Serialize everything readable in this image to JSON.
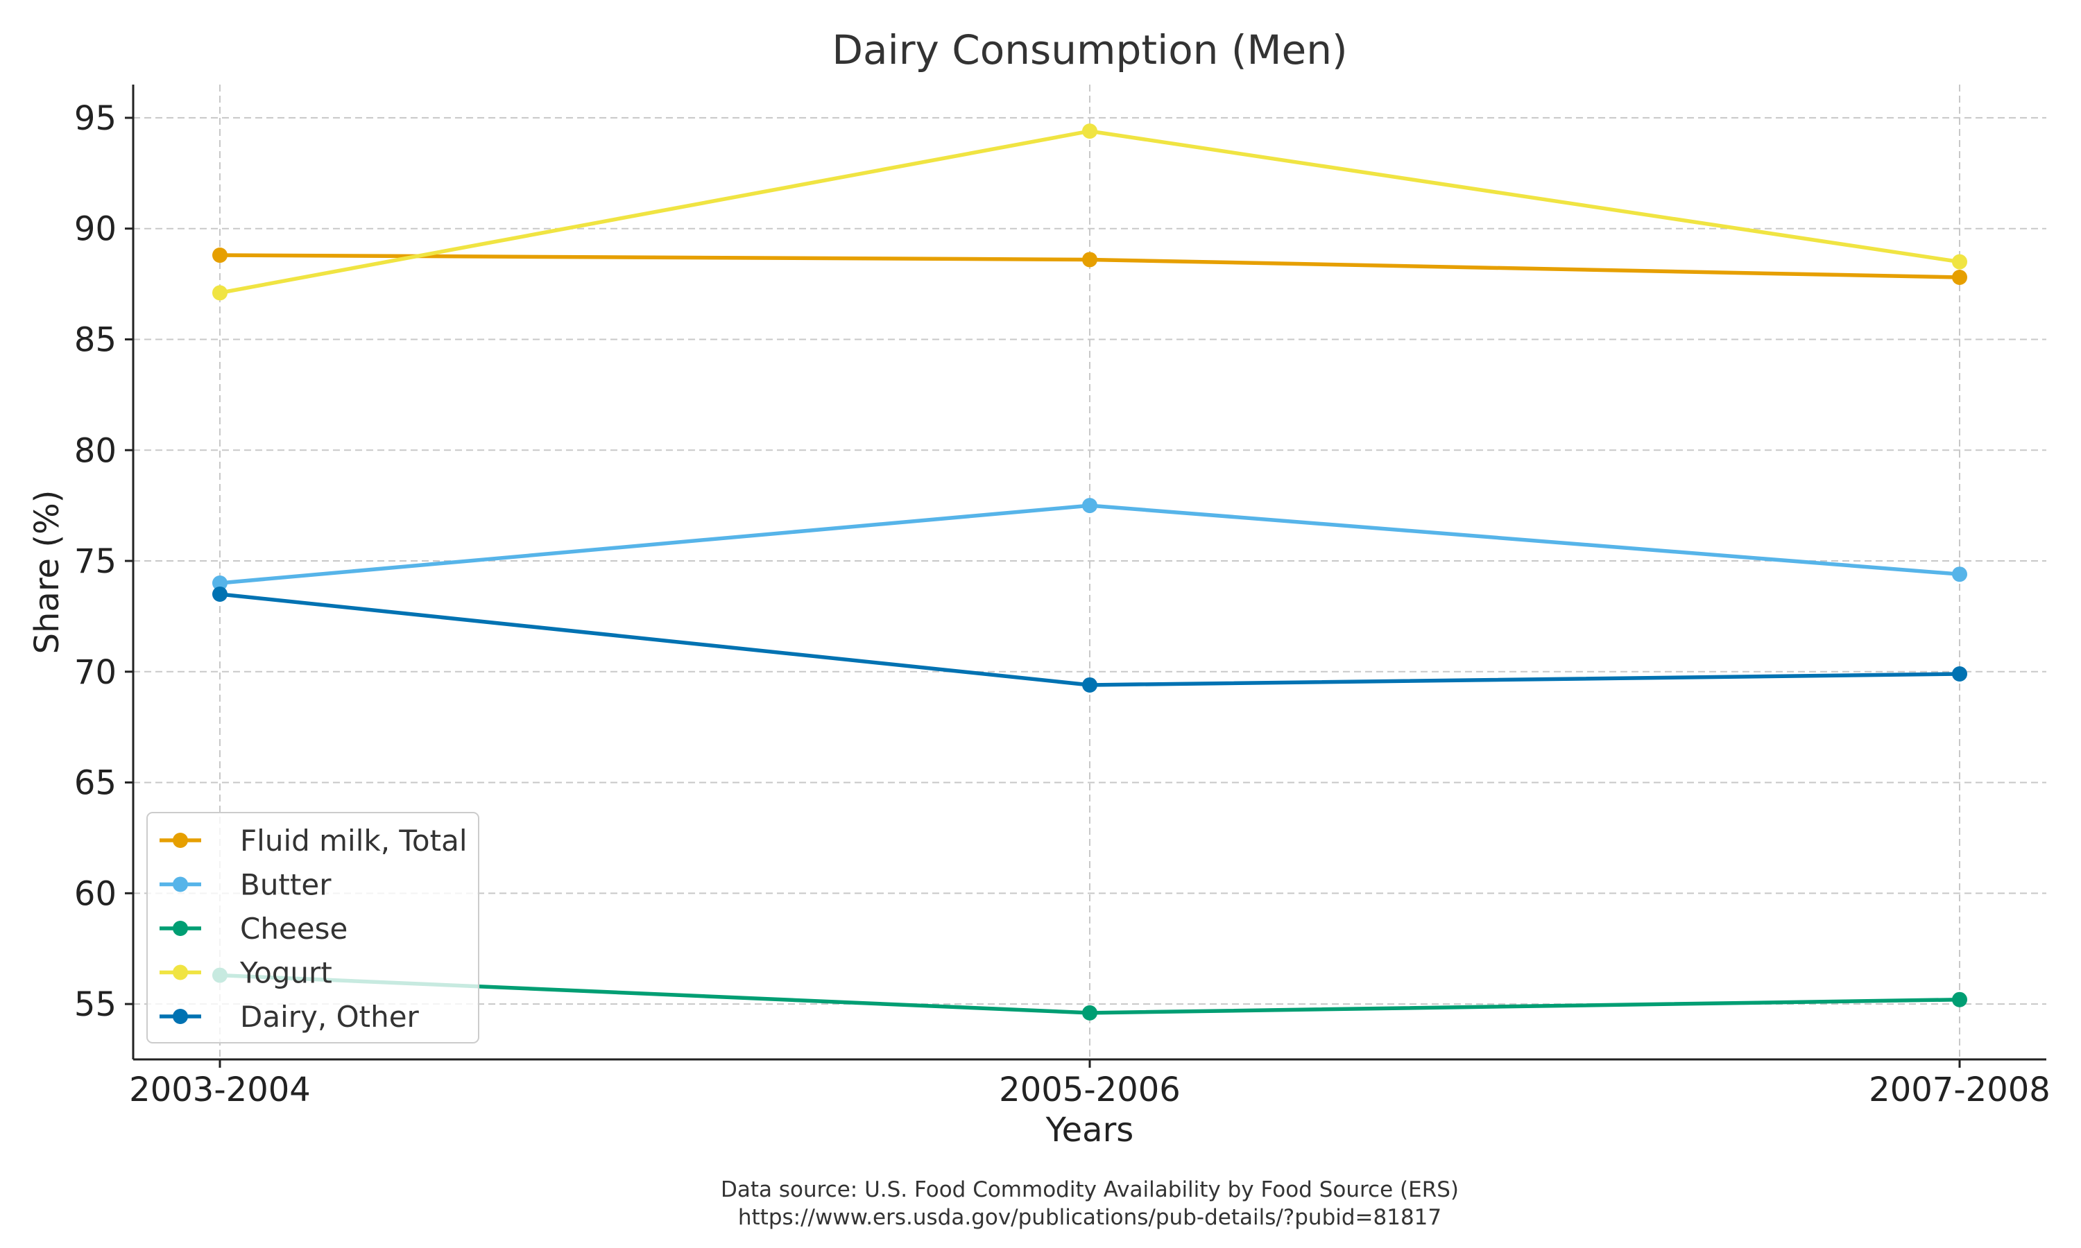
{
  "chart_data": {
    "type": "line",
    "title": "Dairy Consumption (Men)",
    "xlabel": "Years",
    "ylabel": "Share (%)",
    "categories": [
      "2003-2004",
      "2005-2006",
      "2007-2008"
    ],
    "ylim": [
      52.5,
      96.5
    ],
    "yticks": [
      55,
      60,
      65,
      70,
      75,
      80,
      85,
      90,
      95
    ],
    "grid": true,
    "legend_position": "lower-left",
    "series": [
      {
        "name": "Fluid milk, Total",
        "color": "#E69F00",
        "values": [
          88.8,
          88.6,
          87.8
        ]
      },
      {
        "name": "Butter",
        "color": "#56B4E9",
        "values": [
          74.0,
          77.5,
          74.4
        ]
      },
      {
        "name": "Cheese",
        "color": "#009E73",
        "values": [
          56.3,
          54.6,
          55.2
        ]
      },
      {
        "name": "Yogurt",
        "color": "#F0E442",
        "values": [
          87.1,
          94.4,
          88.5
        ]
      },
      {
        "name": "Dairy, Other",
        "color": "#0072B2",
        "values": [
          73.5,
          69.4,
          69.9
        ]
      }
    ],
    "source_lines": [
      "Data source: U.S. Food Commodity Availability by Food Source (ERS)",
      "https://www.ers.usda.gov/publications/pub-details/?pubid=81817"
    ]
  }
}
